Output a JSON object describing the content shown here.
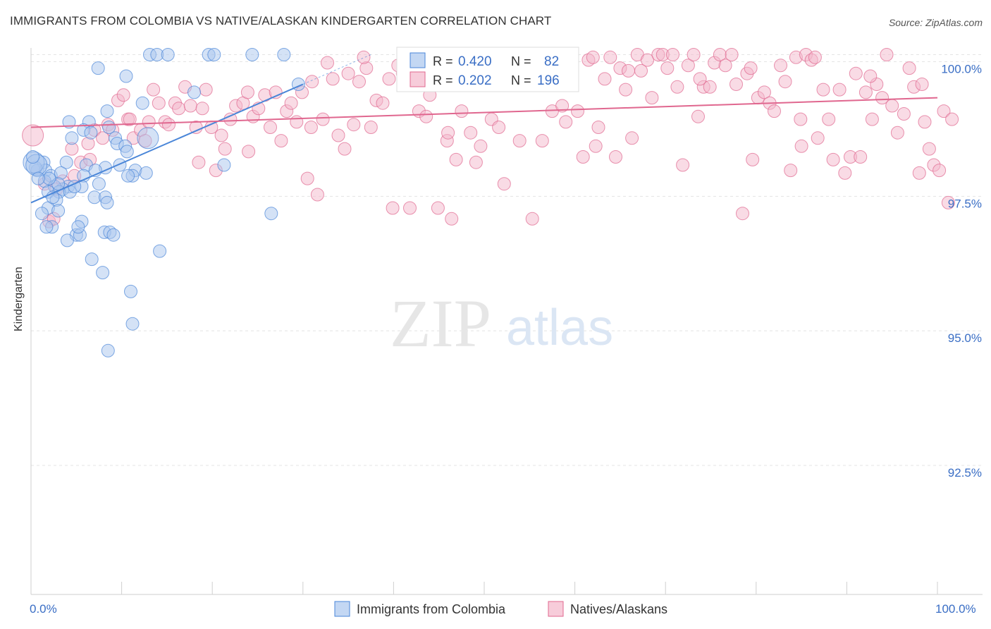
{
  "title": "IMMIGRANTS FROM COLOMBIA VS NATIVE/ALASKAN KINDERGARTEN CORRELATION CHART",
  "source": "Source: ZipAtlas.com",
  "watermark": {
    "zip": "ZIP",
    "atlas": "atlas"
  },
  "colors": {
    "blue": "#4a86d8",
    "blue_fill": "#a9c6ee",
    "pink": "#e0678f",
    "pink_fill": "#f4b7cb",
    "tick": "#3a6ec5"
  },
  "legend_box": {
    "rows": [
      {
        "r_label": "R = ",
        "r_value": "0.420",
        "n_label": "N = ",
        "n_value": "82"
      },
      {
        "r_label": "R = ",
        "r_value": "0.202",
        "n_label": "N = ",
        "n_value": "196"
      }
    ]
  },
  "bottom_legend": [
    "Immigrants from Colombia",
    "Natives/Alaskans"
  ],
  "chart_data": {
    "type": "scatter",
    "xlabel": "",
    "ylabel": "Kindergarten",
    "xlim": [
      0,
      100
    ],
    "ylim": [
      90.0,
      100.3
    ],
    "x_tick_labels": [
      "0.0%",
      "100.0%"
    ],
    "y_ticks": [
      {
        "value": 100.0,
        "label": "100.0%"
      },
      {
        "value": 97.5,
        "label": "97.5%"
      },
      {
        "value": 95.0,
        "label": "95.0%"
      },
      {
        "value": 92.5,
        "label": "92.5%"
      }
    ],
    "series": [
      {
        "name": "Immigrants from Colombia",
        "trend": {
          "x": [
            0,
            30
          ],
          "y": [
            97.25,
            99.45
          ]
        },
        "points": [
          [
            13.1,
            100.0
          ],
          [
            13.9,
            100.0
          ],
          [
            15.1,
            100.0
          ],
          [
            19.6,
            100.0
          ],
          [
            20.2,
            100.0
          ],
          [
            24.4,
            100.0
          ],
          [
            27.9,
            100.0
          ],
          [
            7.4,
            99.75
          ],
          [
            10.5,
            99.6
          ],
          [
            12.3,
            99.1
          ],
          [
            18.0,
            99.3
          ],
          [
            8.4,
            98.95
          ],
          [
            4.2,
            98.75
          ],
          [
            6.4,
            98.75
          ],
          [
            8.6,
            98.65
          ],
          [
            5.8,
            98.6
          ],
          [
            9.3,
            98.45
          ],
          [
            4.5,
            98.45
          ],
          [
            9.5,
            98.35
          ],
          [
            10.4,
            98.3
          ],
          [
            10.6,
            98.2
          ],
          [
            1.4,
            98.0
          ],
          [
            3.9,
            98.0
          ],
          [
            6.1,
            97.95
          ],
          [
            8.2,
            97.9
          ],
          [
            11.5,
            97.85
          ],
          [
            7.1,
            97.85
          ],
          [
            0.7,
            97.85
          ],
          [
            1.6,
            97.85
          ],
          [
            2.2,
            97.75
          ],
          [
            3.3,
            97.8
          ],
          [
            5.8,
            97.75
          ],
          [
            12.7,
            97.8
          ],
          [
            11.2,
            97.75
          ],
          [
            1.5,
            97.65
          ],
          [
            0.5,
            97.9
          ],
          [
            4.1,
            97.55
          ],
          [
            3.5,
            97.5
          ],
          [
            2.6,
            97.55
          ],
          [
            1.9,
            97.45
          ],
          [
            3.1,
            97.45
          ],
          [
            4.3,
            97.45
          ],
          [
            5.6,
            97.55
          ],
          [
            7.0,
            97.35
          ],
          [
            8.2,
            97.35
          ],
          [
            2.8,
            97.3
          ],
          [
            8.4,
            97.25
          ],
          [
            1.9,
            97.15
          ],
          [
            3.0,
            97.1
          ],
          [
            1.2,
            97.05
          ],
          [
            26.5,
            97.05
          ],
          [
            5.6,
            96.9
          ],
          [
            2.3,
            96.8
          ],
          [
            1.7,
            96.8
          ],
          [
            8.1,
            96.7
          ],
          [
            8.7,
            96.7
          ],
          [
            9.1,
            96.65
          ],
          [
            5.0,
            96.65
          ],
          [
            5.4,
            96.65
          ],
          [
            4.0,
            96.55
          ],
          [
            14.2,
            96.35
          ],
          [
            6.7,
            96.2
          ],
          [
            7.9,
            95.95
          ],
          [
            11.0,
            95.6
          ],
          [
            11.2,
            95.0
          ],
          [
            8.5,
            94.5
          ],
          [
            21.3,
            97.95
          ],
          [
            12.9,
            98.45
          ],
          [
            0.3,
            98.0
          ],
          [
            0.6,
            97.95
          ],
          [
            0.2,
            98.1
          ],
          [
            29.5,
            99.45
          ],
          [
            3.0,
            97.6
          ],
          [
            2.0,
            97.7
          ],
          [
            9.8,
            97.95
          ],
          [
            10.7,
            97.75
          ],
          [
            6.6,
            98.55
          ],
          [
            7.5,
            97.6
          ],
          [
            0.8,
            97.7
          ],
          [
            2.4,
            97.35
          ],
          [
            5.2,
            96.8
          ],
          [
            4.8,
            97.55
          ]
        ]
      },
      {
        "name": "Natives/Alaskans",
        "trend": {
          "x": [
            0,
            100
          ],
          "y": [
            98.65,
            99.2
          ]
        },
        "points": [
          [
            0.2,
            98.5
          ],
          [
            1.5,
            97.6
          ],
          [
            2.0,
            96.9
          ],
          [
            2.5,
            96.95
          ],
          [
            3.5,
            97.65
          ],
          [
            4.5,
            98.25
          ],
          [
            5.5,
            98.0
          ],
          [
            6.3,
            98.35
          ],
          [
            7.0,
            98.6
          ],
          [
            7.9,
            98.45
          ],
          [
            8.5,
            98.7
          ],
          [
            9.0,
            98.6
          ],
          [
            9.6,
            99.15
          ],
          [
            10.2,
            99.25
          ],
          [
            10.7,
            98.8
          ],
          [
            11.3,
            98.45
          ],
          [
            12.1,
            98.6
          ],
          [
            12.6,
            98.4
          ],
          [
            13.0,
            98.75
          ],
          [
            13.5,
            99.35
          ],
          [
            14.1,
            99.1
          ],
          [
            14.8,
            98.75
          ],
          [
            15.2,
            98.7
          ],
          [
            15.9,
            99.1
          ],
          [
            16.3,
            99.0
          ],
          [
            17.0,
            99.4
          ],
          [
            17.6,
            99.05
          ],
          [
            18.2,
            98.65
          ],
          [
            18.9,
            99.0
          ],
          [
            19.3,
            99.35
          ],
          [
            19.9,
            98.65
          ],
          [
            20.4,
            97.85
          ],
          [
            21.0,
            98.5
          ],
          [
            21.4,
            98.25
          ],
          [
            22.0,
            98.8
          ],
          [
            22.6,
            99.05
          ],
          [
            23.4,
            99.1
          ],
          [
            23.9,
            99.3
          ],
          [
            24.5,
            98.85
          ],
          [
            25.1,
            99.0
          ],
          [
            25.8,
            99.25
          ],
          [
            26.4,
            98.65
          ],
          [
            27.0,
            99.3
          ],
          [
            27.6,
            98.4
          ],
          [
            28.2,
            98.95
          ],
          [
            28.7,
            99.1
          ],
          [
            29.3,
            98.75
          ],
          [
            29.9,
            99.3
          ],
          [
            30.5,
            97.7
          ],
          [
            31.0,
            99.5
          ],
          [
            31.6,
            97.4
          ],
          [
            32.2,
            98.8
          ],
          [
            32.7,
            99.85
          ],
          [
            33.3,
            99.55
          ],
          [
            33.9,
            98.5
          ],
          [
            34.6,
            98.25
          ],
          [
            35.0,
            99.65
          ],
          [
            35.6,
            98.7
          ],
          [
            36.2,
            99.5
          ],
          [
            37.0,
            99.75
          ],
          [
            37.5,
            98.65
          ],
          [
            38.1,
            99.15
          ],
          [
            38.8,
            99.1
          ],
          [
            39.5,
            99.55
          ],
          [
            39.9,
            97.15
          ],
          [
            40.5,
            99.8
          ],
          [
            41.0,
            99.65
          ],
          [
            41.8,
            97.15
          ],
          [
            42.4,
            99.85
          ],
          [
            42.8,
            98.95
          ],
          [
            43.6,
            98.85
          ],
          [
            44.3,
            99.55
          ],
          [
            44.9,
            97.15
          ],
          [
            45.3,
            99.85
          ],
          [
            45.9,
            98.4
          ],
          [
            46.4,
            96.95
          ],
          [
            46.9,
            98.05
          ],
          [
            47.5,
            98.95
          ],
          [
            48.0,
            99.8
          ],
          [
            48.5,
            98.55
          ],
          [
            49.1,
            98.0
          ],
          [
            49.6,
            98.3
          ],
          [
            50.2,
            99.75
          ],
          [
            50.8,
            98.8
          ],
          [
            51.6,
            98.65
          ],
          [
            52.2,
            97.6
          ],
          [
            52.8,
            99.5
          ],
          [
            53.2,
            99.95
          ],
          [
            53.9,
            98.4
          ],
          [
            54.6,
            99.95
          ],
          [
            55.3,
            96.95
          ],
          [
            55.7,
            99.95
          ],
          [
            56.4,
            98.4
          ],
          [
            57.0,
            99.95
          ],
          [
            57.5,
            98.95
          ],
          [
            58.1,
            99.6
          ],
          [
            58.6,
            99.05
          ],
          [
            59.0,
            98.75
          ],
          [
            59.7,
            99.95
          ],
          [
            60.3,
            98.95
          ],
          [
            60.9,
            98.1
          ],
          [
            61.5,
            99.9
          ],
          [
            62.0,
            99.95
          ],
          [
            62.6,
            98.65
          ],
          [
            63.3,
            99.55
          ],
          [
            63.9,
            99.95
          ],
          [
            64.5,
            98.1
          ],
          [
            65.0,
            99.75
          ],
          [
            65.6,
            99.35
          ],
          [
            66.3,
            98.45
          ],
          [
            66.9,
            100.0
          ],
          [
            67.3,
            99.7
          ],
          [
            68.0,
            99.9
          ],
          [
            68.5,
            99.2
          ],
          [
            69.2,
            100.0
          ],
          [
            69.7,
            100.0
          ],
          [
            70.2,
            99.75
          ],
          [
            70.8,
            100.0
          ],
          [
            71.3,
            99.4
          ],
          [
            71.9,
            97.95
          ],
          [
            72.5,
            99.8
          ],
          [
            73.1,
            100.0
          ],
          [
            73.6,
            98.85
          ],
          [
            74.2,
            99.4
          ],
          [
            74.9,
            99.4
          ],
          [
            75.4,
            99.85
          ],
          [
            76.0,
            100.0
          ],
          [
            76.6,
            99.8
          ],
          [
            77.3,
            100.0
          ],
          [
            77.8,
            99.45
          ],
          [
            78.5,
            97.05
          ],
          [
            79.0,
            99.65
          ],
          [
            79.6,
            98.05
          ],
          [
            80.2,
            99.2
          ],
          [
            80.9,
            99.3
          ],
          [
            81.5,
            99.1
          ],
          [
            82.0,
            98.95
          ],
          [
            82.7,
            99.8
          ],
          [
            83.2,
            99.5
          ],
          [
            83.8,
            97.85
          ],
          [
            84.4,
            99.95
          ],
          [
            85.0,
            98.3
          ],
          [
            85.5,
            100.0
          ],
          [
            86.1,
            99.9
          ],
          [
            86.8,
            98.45
          ],
          [
            87.4,
            99.35
          ],
          [
            88.0,
            98.8
          ],
          [
            88.5,
            98.05
          ],
          [
            89.2,
            99.35
          ],
          [
            89.8,
            97.8
          ],
          [
            90.4,
            98.1
          ],
          [
            91.0,
            99.65
          ],
          [
            91.5,
            98.1
          ],
          [
            92.1,
            99.3
          ],
          [
            92.8,
            98.8
          ],
          [
            93.3,
            99.45
          ],
          [
            93.9,
            99.2
          ],
          [
            94.4,
            100.0
          ],
          [
            95.0,
            99.05
          ],
          [
            95.6,
            98.55
          ],
          [
            96.3,
            98.9
          ],
          [
            96.9,
            99.75
          ],
          [
            97.4,
            99.4
          ],
          [
            98.0,
            97.8
          ],
          [
            98.6,
            98.75
          ],
          [
            99.1,
            98.25
          ],
          [
            99.6,
            97.95
          ],
          [
            100.2,
            97.85
          ],
          [
            100.7,
            98.95
          ],
          [
            101.2,
            97.25
          ],
          [
            101.6,
            98.8
          ],
          [
            4.8,
            97.75
          ],
          [
            6.5,
            98.05
          ],
          [
            2.8,
            97.5
          ],
          [
            10.9,
            98.8
          ],
          [
            24.0,
            98.2
          ],
          [
            36.7,
            99.95
          ],
          [
            44.0,
            99.25
          ],
          [
            52.4,
            99.55
          ],
          [
            58.9,
            99.75
          ],
          [
            65.9,
            99.7
          ],
          [
            73.8,
            99.55
          ],
          [
            79.4,
            99.75
          ],
          [
            86.5,
            99.95
          ],
          [
            92.6,
            99.6
          ],
          [
            98.3,
            99.45
          ],
          [
            30.9,
            98.65
          ],
          [
            18.5,
            98.0
          ],
          [
            46.0,
            98.55
          ],
          [
            62.3,
            98.3
          ],
          [
            84.9,
            98.8
          ]
        ]
      }
    ]
  }
}
